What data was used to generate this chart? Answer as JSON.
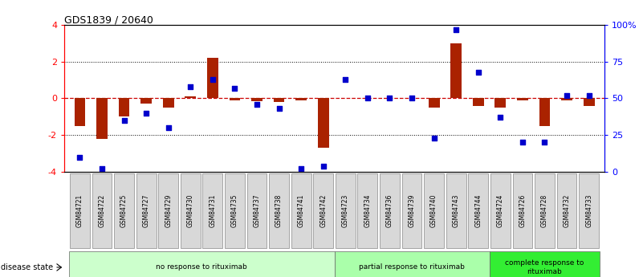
{
  "title": "GDS1839 / 20640",
  "samples": [
    "GSM84721",
    "GSM84722",
    "GSM84725",
    "GSM84727",
    "GSM84729",
    "GSM84730",
    "GSM84731",
    "GSM84735",
    "GSM84737",
    "GSM84738",
    "GSM84741",
    "GSM84742",
    "GSM84723",
    "GSM84734",
    "GSM84736",
    "GSM84739",
    "GSM84740",
    "GSM84743",
    "GSM84744",
    "GSM84724",
    "GSM84726",
    "GSM84728",
    "GSM84732",
    "GSM84733"
  ],
  "log2_ratio": [
    -1.5,
    -2.2,
    -1.0,
    -0.3,
    -0.5,
    0.1,
    2.2,
    -0.1,
    -0.15,
    -0.2,
    -0.1,
    -2.7,
    0.0,
    0.0,
    0.0,
    0.0,
    -0.5,
    3.0,
    -0.4,
    -0.5,
    -0.1,
    -1.5,
    -0.1,
    -0.4
  ],
  "percentile": [
    10,
    2,
    35,
    40,
    30,
    58,
    63,
    57,
    46,
    43,
    2,
    4,
    63,
    50,
    50,
    50,
    23,
    97,
    68,
    37,
    20,
    20,
    52,
    52
  ],
  "groups": [
    {
      "label": "no response to rituximab",
      "start": 0,
      "end": 12,
      "color": "#ccffcc"
    },
    {
      "label": "partial response to rituximab",
      "start": 12,
      "end": 19,
      "color": "#aaffaa"
    },
    {
      "label": "complete response to\nrituximab",
      "start": 19,
      "end": 24,
      "color": "#33ee33"
    }
  ],
  "ylim_left": [
    -4,
    4
  ],
  "ylim_right": [
    0,
    100
  ],
  "yticks_left": [
    -4,
    -2,
    0,
    2,
    4
  ],
  "yticks_right": [
    0,
    25,
    50,
    75,
    100
  ],
  "yticklabels_right": [
    "0",
    "25",
    "50",
    "75",
    "100%"
  ],
  "bar_color": "#aa2200",
  "dot_color": "#0000cc",
  "zero_line_color": "#cc0000",
  "grid_color": "#000000",
  "background_color": "#ffffff"
}
